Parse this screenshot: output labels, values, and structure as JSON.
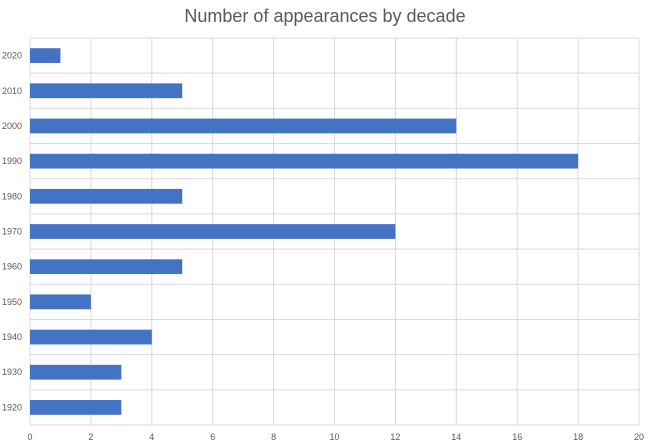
{
  "chart_data": {
    "type": "bar",
    "orientation": "horizontal",
    "title": "Number of appearances by decade",
    "xlabel": "",
    "ylabel": "",
    "categories": [
      "2020",
      "2010",
      "2000",
      "1990",
      "1980",
      "1970",
      "1960",
      "1950",
      "1940",
      "1930",
      "1920"
    ],
    "values": [
      1,
      5,
      14,
      18,
      5,
      12,
      5,
      2,
      4,
      3,
      3
    ],
    "xlim": [
      0,
      20
    ],
    "x_ticks": [
      "0",
      "2",
      "4",
      "6",
      "8",
      "10",
      "12",
      "14",
      "16",
      "18",
      "20"
    ],
    "grid": true,
    "legend": "none",
    "bar_color": "#4472C4"
  }
}
